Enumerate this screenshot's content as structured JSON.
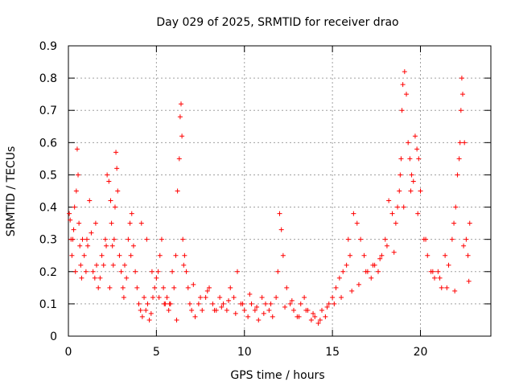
{
  "chart_data": {
    "type": "scatter",
    "title": "Day 029 of 2025, SRMTID for receiver drao",
    "xlabel": "GPS time / hours",
    "ylabel": "SRMTID / TECUs",
    "xlim": [
      0,
      24
    ],
    "ylim": [
      0,
      0.9
    ],
    "xticks": [
      0,
      5,
      10,
      15,
      20
    ],
    "xtick_labels": [
      "0",
      "5",
      "10",
      "15",
      "20"
    ],
    "yticks": [
      0,
      0.1,
      0.2,
      0.3,
      0.4,
      0.5,
      0.6,
      0.7,
      0.8,
      0.9
    ],
    "ytick_labels": [
      "0",
      "0.1",
      "0.2",
      "0.3",
      "0.4",
      "0.5",
      "0.6",
      "0.7",
      "0.8",
      "0.9"
    ],
    "grid": true,
    "marker": "+",
    "series": [
      {
        "name": "SRMTID",
        "color": "#ff0000",
        "x": [
          0.05,
          0.1,
          0.15,
          0.2,
          0.3,
          0.35,
          0.45,
          0.5,
          0.55,
          0.6,
          0.65,
          0.7,
          0.8,
          0.9,
          1.0,
          1.1,
          1.2,
          1.3,
          1.4,
          1.5,
          1.6,
          1.7,
          1.8,
          1.9,
          2.0,
          2.1,
          2.2,
          2.3,
          2.4,
          2.45,
          2.5,
          2.55,
          2.6,
          2.65,
          2.7,
          2.75,
          2.8,
          2.9,
          3.0,
          3.1,
          3.2,
          3.3,
          3.4,
          3.5,
          3.6,
          3.7,
          3.8,
          3.9,
          4.0,
          4.1,
          4.2,
          4.3,
          4.4,
          4.5,
          4.6,
          4.7,
          4.8,
          4.9,
          5.0,
          5.1,
          5.2,
          5.3,
          5.4,
          5.5,
          5.6,
          5.7,
          5.8,
          5.9,
          6.0,
          6.1,
          6.2,
          6.3,
          6.35,
          6.4,
          6.45,
          6.5,
          6.6,
          6.7,
          6.8,
          6.9,
          7.0,
          7.2,
          7.4,
          7.6,
          7.8,
          8.0,
          8.2,
          8.4,
          8.6,
          8.8,
          9.0,
          9.2,
          9.4,
          9.6,
          9.8,
          10.0,
          10.2,
          10.4,
          10.6,
          10.8,
          11.0,
          11.2,
          11.4,
          11.6,
          11.8,
          11.9,
          12.0,
          12.1,
          12.2,
          12.4,
          12.6,
          12.8,
          13.0,
          13.2,
          13.4,
          13.6,
          13.8,
          14.0,
          14.2,
          14.4,
          14.6,
          14.8,
          15.0,
          15.2,
          15.4,
          15.6,
          15.8,
          15.9,
          16.0,
          16.2,
          16.4,
          16.6,
          16.8,
          17.0,
          17.2,
          17.4,
          17.6,
          17.8,
          18.0,
          18.2,
          18.4,
          18.6,
          18.7,
          18.8,
          18.85,
          18.9,
          18.95,
          19.0,
          19.1,
          19.2,
          19.3,
          19.4,
          19.5,
          19.6,
          19.7,
          19.8,
          19.9,
          20.0,
          20.2,
          20.4,
          20.6,
          20.8,
          21.0,
          21.2,
          21.4,
          21.6,
          21.8,
          21.9,
          22.0,
          22.1,
          22.2,
          22.25,
          22.3,
          22.35,
          22.4,
          22.5,
          22.6,
          22.7,
          22.8,
          0.25,
          0.4,
          0.75,
          1.05,
          1.55,
          2.15,
          2.35,
          3.15,
          3.55,
          4.15,
          4.45,
          4.75,
          5.15,
          5.45,
          5.75,
          6.15,
          6.55,
          7.1,
          7.5,
          7.9,
          8.3,
          8.7,
          9.1,
          9.5,
          9.9,
          10.3,
          10.7,
          11.1,
          11.5,
          12.3,
          12.7,
          13.1,
          13.5,
          13.9,
          14.3,
          14.7,
          15.1,
          15.5,
          16.1,
          16.5,
          16.9,
          17.3,
          17.7,
          18.1,
          18.5,
          19.05,
          19.45,
          19.85,
          20.3,
          20.7,
          21.1,
          21.5,
          21.95,
          22.45,
          22.75
        ],
        "y": [
          0.38,
          0.36,
          0.3,
          0.25,
          0.33,
          0.4,
          0.45,
          0.58,
          0.5,
          0.35,
          0.28,
          0.22,
          0.3,
          0.25,
          0.2,
          0.28,
          0.42,
          0.32,
          0.2,
          0.18,
          0.22,
          0.15,
          0.18,
          0.25,
          0.22,
          0.3,
          0.5,
          0.48,
          0.42,
          0.35,
          0.28,
          0.22,
          0.3,
          0.4,
          0.57,
          0.52,
          0.45,
          0.25,
          0.2,
          0.15,
          0.22,
          0.18,
          0.3,
          0.35,
          0.38,
          0.28,
          0.2,
          0.15,
          0.1,
          0.08,
          0.06,
          0.12,
          0.08,
          0.1,
          0.05,
          0.07,
          0.12,
          0.15,
          0.18,
          0.2,
          0.25,
          0.3,
          0.15,
          0.1,
          0.12,
          0.08,
          0.1,
          0.2,
          0.15,
          0.25,
          0.45,
          0.55,
          0.68,
          0.72,
          0.62,
          0.3,
          0.25,
          0.2,
          0.15,
          0.1,
          0.08,
          0.06,
          0.1,
          0.08,
          0.12,
          0.15,
          0.1,
          0.08,
          0.12,
          0.1,
          0.08,
          0.15,
          0.12,
          0.2,
          0.1,
          0.08,
          0.06,
          0.1,
          0.08,
          0.05,
          0.12,
          0.1,
          0.08,
          0.06,
          0.12,
          0.2,
          0.38,
          0.33,
          0.25,
          0.15,
          0.1,
          0.08,
          0.06,
          0.1,
          0.12,
          0.08,
          0.05,
          0.06,
          0.04,
          0.08,
          0.06,
          0.1,
          0.12,
          0.15,
          0.18,
          0.2,
          0.22,
          0.3,
          0.25,
          0.38,
          0.35,
          0.3,
          0.25,
          0.2,
          0.18,
          0.22,
          0.2,
          0.25,
          0.3,
          0.42,
          0.38,
          0.35,
          0.4,
          0.45,
          0.5,
          0.55,
          0.7,
          0.78,
          0.82,
          0.75,
          0.6,
          0.55,
          0.5,
          0.48,
          0.62,
          0.58,
          0.55,
          0.45,
          0.3,
          0.25,
          0.2,
          0.18,
          0.2,
          0.15,
          0.25,
          0.22,
          0.3,
          0.35,
          0.4,
          0.5,
          0.55,
          0.6,
          0.7,
          0.8,
          0.75,
          0.6,
          0.3,
          0.25,
          0.35,
          0.3,
          0.2,
          0.18,
          0.3,
          0.35,
          0.28,
          0.15,
          0.12,
          0.25,
          0.35,
          0.3,
          0.2,
          0.12,
          0.1,
          0.1,
          0.05,
          0.22,
          0.16,
          0.12,
          0.14,
          0.08,
          0.09,
          0.11,
          0.07,
          0.1,
          0.13,
          0.09,
          0.07,
          0.1,
          0.09,
          0.11,
          0.06,
          0.08,
          0.07,
          0.05,
          0.09,
          0.1,
          0.12,
          0.14,
          0.16,
          0.2,
          0.22,
          0.24,
          0.28,
          0.26,
          0.4,
          0.45,
          0.38,
          0.3,
          0.2,
          0.18,
          0.15,
          0.14,
          0.28,
          0.17
        ]
      }
    ]
  }
}
